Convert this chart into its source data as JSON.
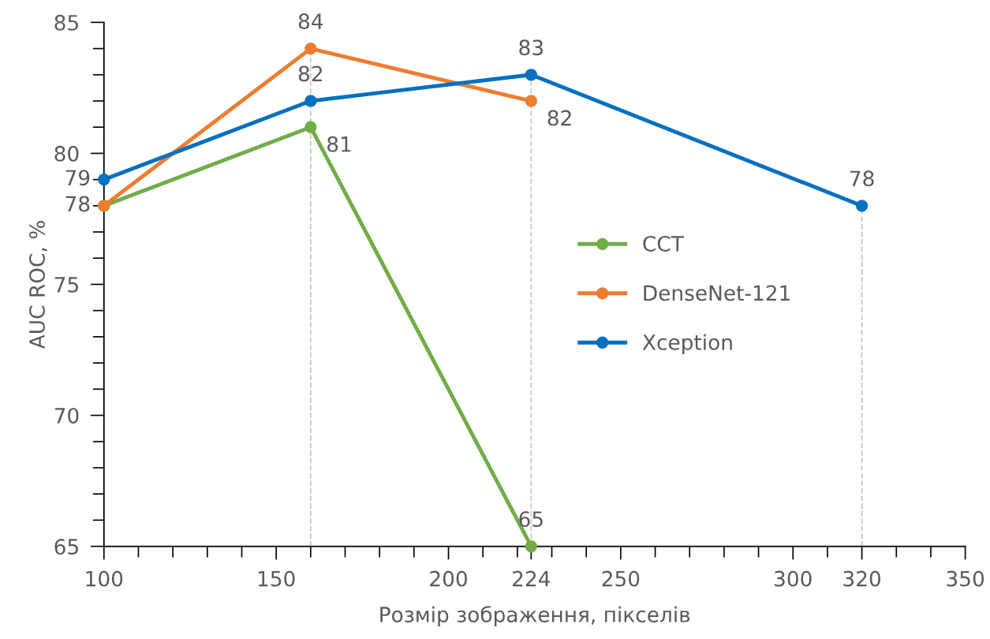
{
  "chart_data": {
    "type": "line",
    "xlabel": "Розмір зображення, пікселів",
    "ylabel": "AUC ROC, %",
    "xlim": [
      100,
      350
    ],
    "xticks": [
      100,
      150,
      200,
      224,
      250,
      300,
      320,
      350
    ],
    "ylim": [
      65,
      85
    ],
    "yticks": [
      65,
      70,
      75,
      80,
      85
    ],
    "marker": "circle",
    "line_style": "solid",
    "grid": false,
    "legend": "right",
    "ref_lines": [
      {
        "axis": "x",
        "value": 160,
        "color": "#c8c8c8",
        "line_style": "dashed"
      },
      {
        "axis": "x",
        "value": 224,
        "color": "#c8c8c8",
        "line_style": "dashed"
      },
      {
        "axis": "x",
        "value": 320,
        "color": "#c8c8c8",
        "line_style": "dashed"
      }
    ],
    "series": [
      {
        "name": "CCT",
        "color": "#70ad47",
        "x": [
          100,
          160,
          224
        ],
        "values": [
          78,
          81,
          65
        ],
        "value_labels": [
          null,
          "81",
          "65"
        ]
      },
      {
        "name": "DenseNet-121",
        "color": "#ed7d31",
        "x": [
          100,
          160,
          224
        ],
        "values": [
          78,
          84,
          82
        ],
        "value_labels": [
          "78",
          "84",
          "82"
        ]
      },
      {
        "name": "Xception",
        "color": "#0070c0",
        "x": [
          100,
          160,
          224,
          320
        ],
        "values": [
          79,
          82,
          83,
          78
        ],
        "value_labels": [
          "79",
          "82",
          "83",
          "78"
        ]
      }
    ]
  }
}
